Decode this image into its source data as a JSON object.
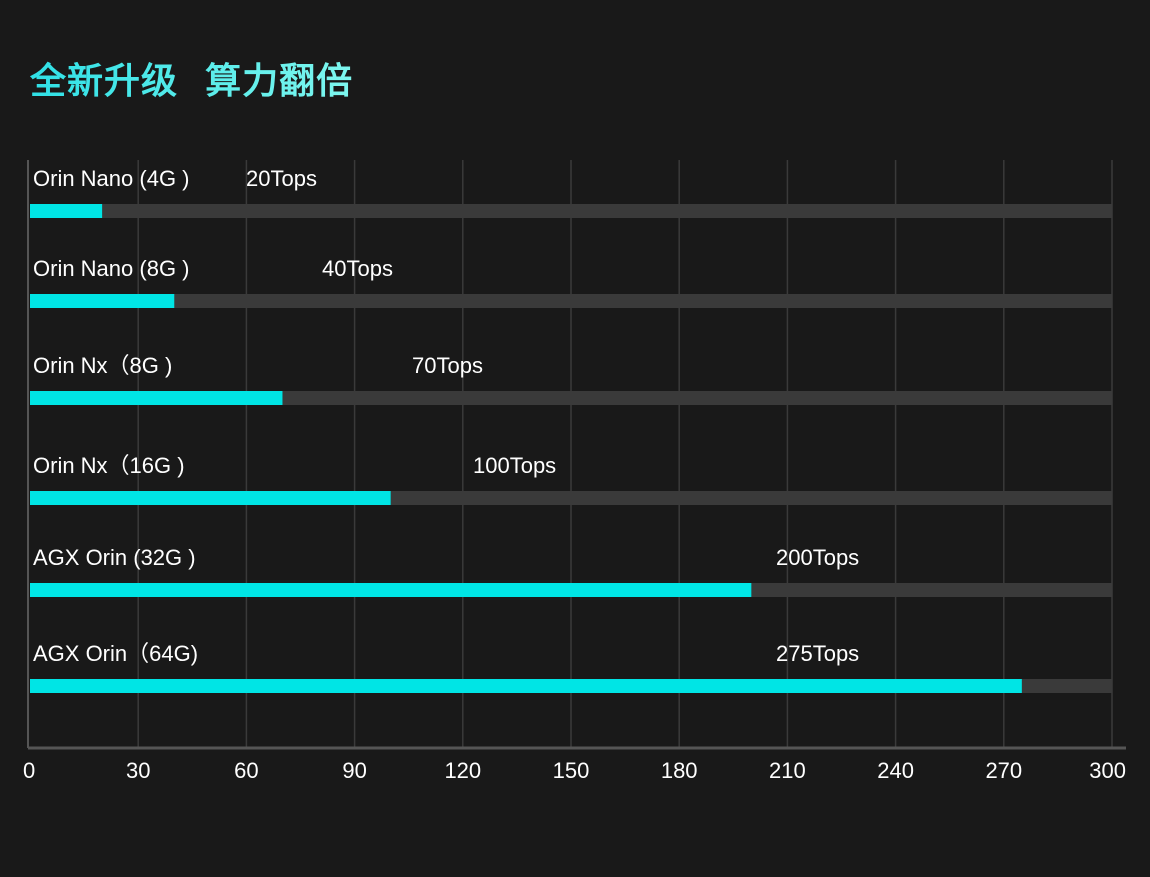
{
  "title": "全新升级  算力翻倍",
  "colors": {
    "bar": "#00e5e5",
    "track": "#3a3a3a",
    "grid": "#3a3a3a",
    "axis": "#555555",
    "background": "#191919"
  },
  "chart_data": {
    "type": "bar",
    "orientation": "horizontal",
    "title": "全新升级  算力翻倍",
    "xlabel": "",
    "ylabel": "",
    "categories": [
      "Orin Nano (4G )",
      "Orin Nano (8G )",
      "Orin Nx（8G )",
      "Orin Nx（16G )",
      "AGX Orin (32G )",
      "AGX Orin（64G)"
    ],
    "values": [
      20,
      40,
      70,
      100,
      200,
      275
    ],
    "value_labels": [
      "20Tops",
      "40Tops",
      "70Tops",
      "100Tops",
      "200Tops",
      "275Tops"
    ],
    "xlim": [
      0,
      300
    ],
    "xticks": [
      0,
      30,
      60,
      90,
      120,
      150,
      180,
      210,
      240,
      270,
      300
    ],
    "grid": true,
    "legend": "none"
  }
}
